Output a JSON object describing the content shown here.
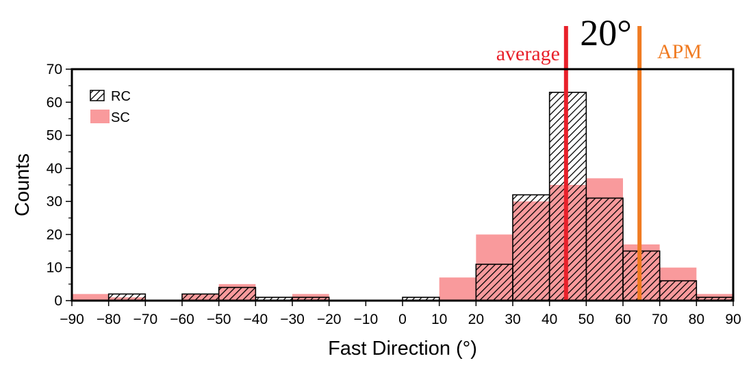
{
  "chart_data": {
    "type": "bar",
    "xlabel": "Fast Direction (°)",
    "ylabel": "Counts",
    "xlim": [
      -90,
      90
    ],
    "ylim": [
      0,
      70
    ],
    "xticks": [
      -90,
      -80,
      -70,
      -60,
      -50,
      -40,
      -30,
      -20,
      -10,
      0,
      10,
      20,
      30,
      40,
      50,
      60,
      70,
      80,
      90
    ],
    "yticks": [
      0,
      10,
      20,
      30,
      40,
      50,
      60,
      70
    ],
    "bin_edges": [
      -90,
      -80,
      -70,
      -60,
      -50,
      -40,
      -30,
      -20,
      -10,
      0,
      10,
      20,
      30,
      40,
      50,
      60,
      70,
      80,
      90
    ],
    "series": [
      {
        "name": "SC",
        "color": "#f99a9c",
        "values": [
          2,
          1,
          0,
          2,
          5,
          0,
          2,
          0,
          0,
          0,
          7,
          20,
          30,
          35,
          37,
          17,
          10,
          2
        ]
      },
      {
        "name": "RC",
        "color": "#000000",
        "values": [
          0,
          2,
          0,
          2,
          4,
          1,
          1,
          0,
          0,
          1,
          0,
          11,
          32,
          63,
          31,
          15,
          6,
          1
        ]
      }
    ],
    "legend": {
      "placement": "top-left"
    },
    "grid": false,
    "annotations": {
      "average": {
        "label": "average",
        "x": 44.5,
        "color": "#e8202a"
      },
      "apm": {
        "label": "APM",
        "x": 64.5,
        "color": "#f07b22"
      },
      "difference": {
        "label": "20°"
      }
    }
  }
}
